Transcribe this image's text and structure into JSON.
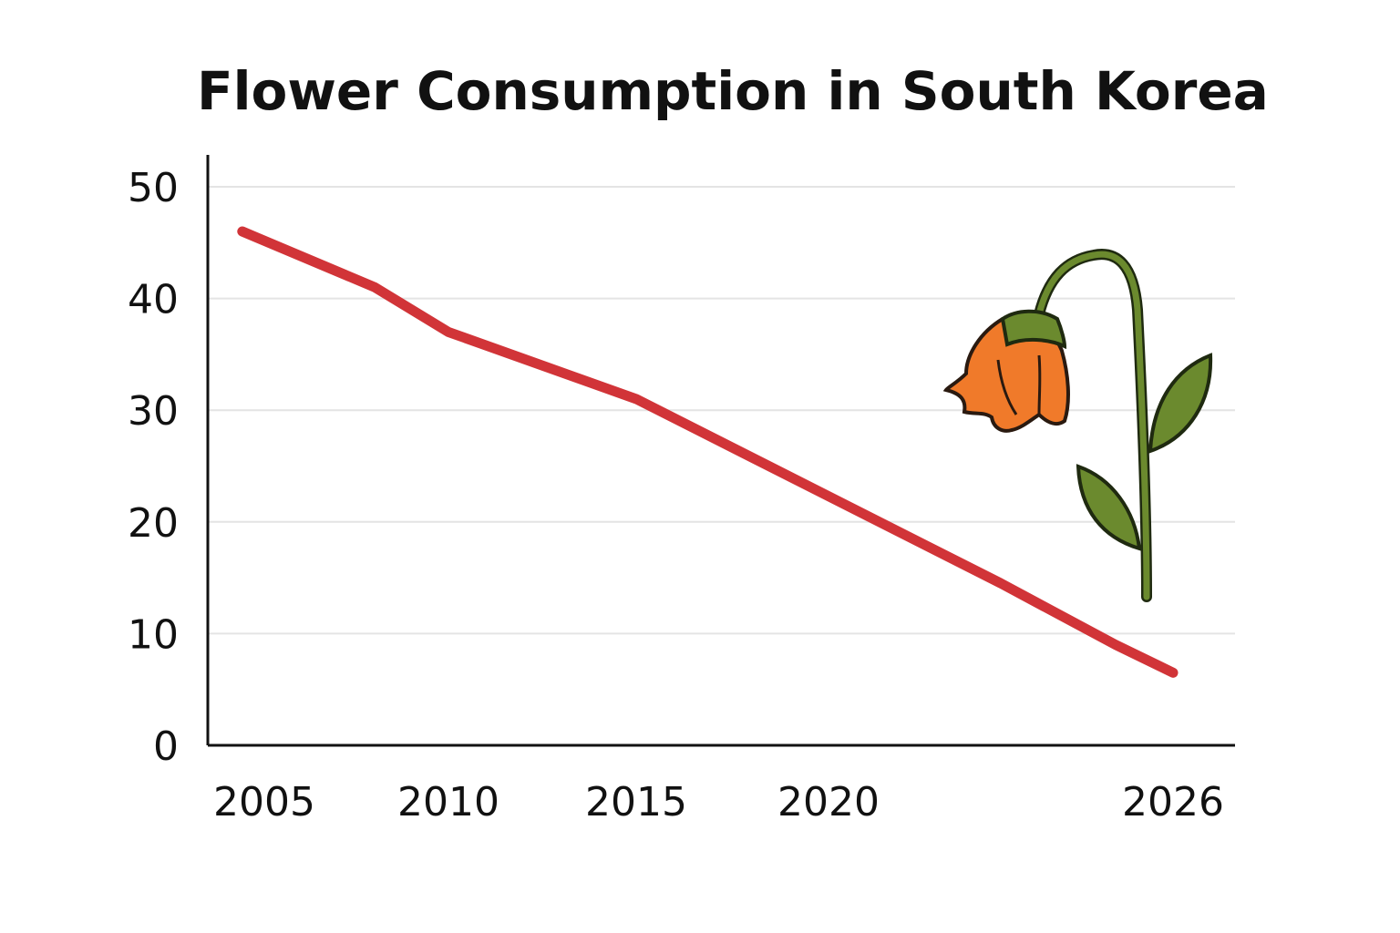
{
  "chart_data": {
    "type": "line",
    "title": "Flower Consumption in South Korea",
    "xlabel": "",
    "ylabel": "",
    "x_ticks": [
      2005,
      2010,
      2015,
      2020,
      2026
    ],
    "y_ticks": [
      0,
      10,
      20,
      30,
      40,
      50
    ],
    "ylim": [
      0,
      50
    ],
    "grid": "horizontal",
    "series": [
      {
        "color": "#d13438",
        "points": [
          {
            "x": 2004.4,
            "y": 46
          },
          {
            "x": 2008,
            "y": 41
          },
          {
            "x": 2010,
            "y": 37
          },
          {
            "x": 2015,
            "y": 31
          },
          {
            "x": 2023,
            "y": 14.5
          },
          {
            "x": 2025,
            "y": 9
          },
          {
            "x": 2026,
            "y": 6.5
          }
        ]
      }
    ],
    "decoration": "wilting-flower-icon"
  }
}
